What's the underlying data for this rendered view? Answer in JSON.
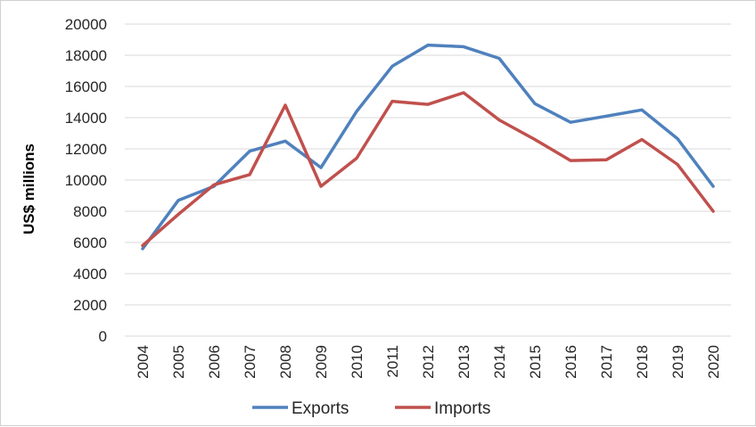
{
  "chart_data": {
    "type": "line",
    "title": "",
    "xlabel": "",
    "ylabel": "US$ millions",
    "ylim": [
      0,
      20000
    ],
    "yticks": [
      0,
      2000,
      4000,
      6000,
      8000,
      10000,
      12000,
      14000,
      16000,
      18000,
      20000
    ],
    "grid": true,
    "legend_position": "bottom",
    "categories": [
      "2004",
      "2005",
      "2006",
      "2007",
      "2008",
      "2009",
      "2010",
      "2011",
      "2012",
      "2013",
      "2014",
      "2015",
      "2016",
      "2017",
      "2018",
      "2019",
      "2020"
    ],
    "series": [
      {
        "name": "Exports",
        "color": "#4F81BD",
        "values": [
          5600,
          8700,
          9600,
          11850,
          12500,
          10800,
          14400,
          17300,
          18650,
          18550,
          17800,
          14900,
          13700,
          14100,
          14500,
          12650,
          9600
        ]
      },
      {
        "name": "Imports",
        "color": "#C0504D",
        "values": [
          5800,
          7800,
          9700,
          10350,
          14800,
          9600,
          11400,
          15050,
          14850,
          15600,
          13850,
          12600,
          11250,
          11300,
          12600,
          11000,
          8000
        ]
      }
    ]
  }
}
